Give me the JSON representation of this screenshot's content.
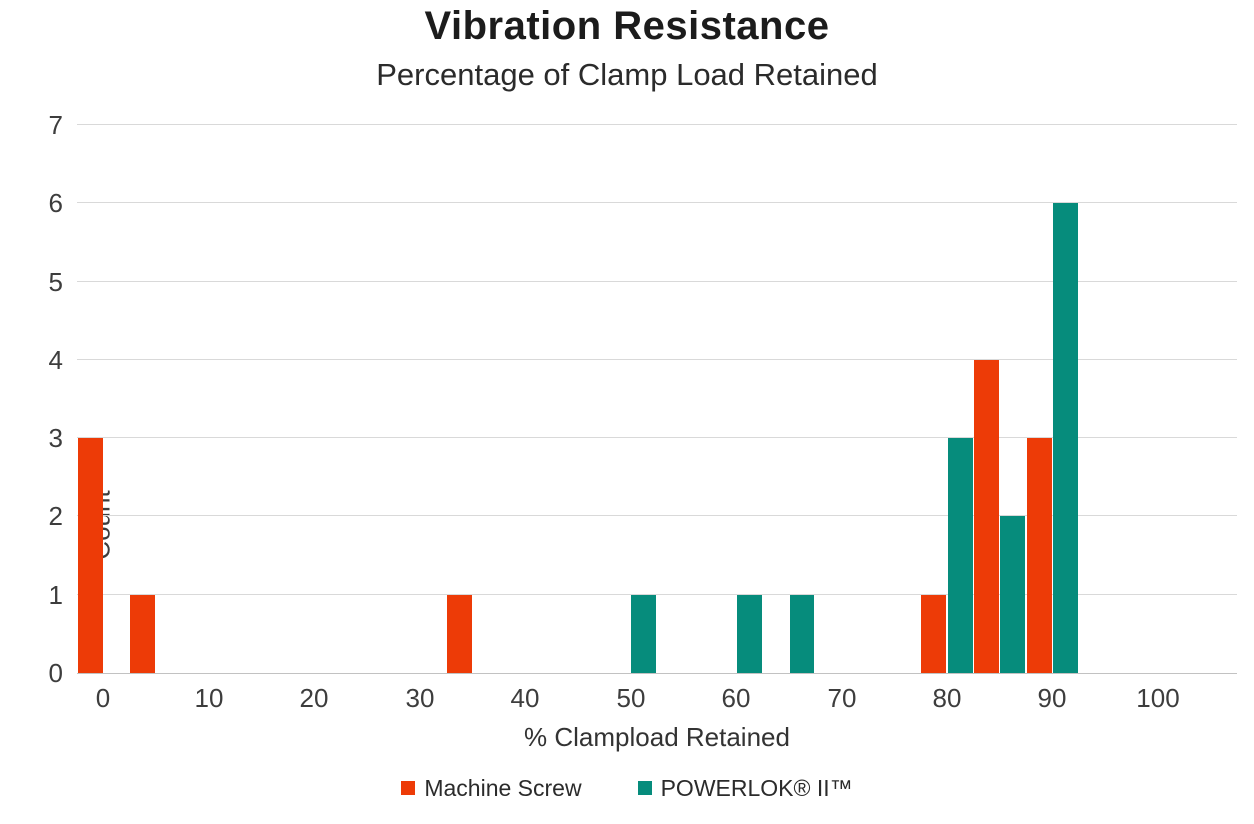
{
  "chart_data": {
    "type": "bar",
    "subtype": "histogram",
    "title": "Vibration Resistance",
    "subtitle": "Percentage of Clamp Load Retained",
    "xlabel": "% Clampload Retained",
    "ylabel": "Count",
    "xlim": [
      -2.5,
      107.5
    ],
    "ylim": [
      0,
      7
    ],
    "xticks": [
      0,
      10,
      20,
      30,
      40,
      50,
      60,
      70,
      80,
      90,
      100
    ],
    "yticks": [
      0,
      1,
      2,
      3,
      4,
      5,
      6,
      7
    ],
    "bin_width": 2.5,
    "grid": true,
    "legend_position": "bottom",
    "colors": {
      "gridline": "#d9d9d9",
      "axis_line": "#c2c2c2",
      "text": "#3d3d3d"
    },
    "series": [
      {
        "name": "Machine Screw",
        "color": "#ED3B07",
        "bins": [
          {
            "start": -2.5,
            "count": 3
          },
          {
            "start": 2.5,
            "count": 1
          },
          {
            "start": 32.5,
            "count": 1
          },
          {
            "start": 77.5,
            "count": 1
          },
          {
            "start": 82.5,
            "count": 4
          },
          {
            "start": 87.5,
            "count": 3
          }
        ]
      },
      {
        "name": "POWERLOK® II™",
        "color": "#068C7C",
        "bins": [
          {
            "start": 50,
            "count": 1
          },
          {
            "start": 60,
            "count": 1
          },
          {
            "start": 65,
            "count": 1
          },
          {
            "start": 80,
            "count": 3
          },
          {
            "start": 85,
            "count": 2
          },
          {
            "start": 90,
            "count": 6
          }
        ]
      }
    ]
  }
}
